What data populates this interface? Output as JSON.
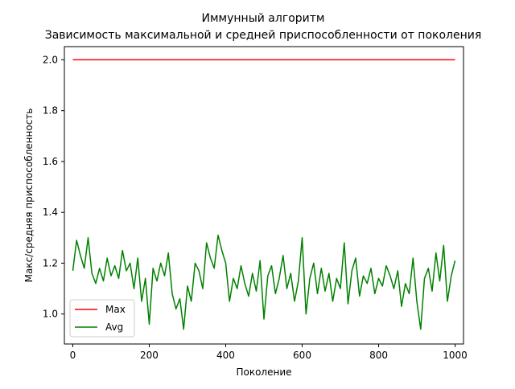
{
  "chart_data": {
    "type": "line",
    "title": "Иммунный алгоритм",
    "subtitle": "Зависимость максимальной и средней приспособленности от поколения",
    "xlabel": "Поколение",
    "ylabel": "Макс/средняя приспособленность",
    "xlim": [
      -22,
      1022
    ],
    "ylim": [
      0.882,
      2.052
    ],
    "xticks": [
      0,
      200,
      400,
      600,
      800,
      1000
    ],
    "yticks": [
      1.0,
      1.2,
      1.4,
      1.6,
      1.8,
      2.0
    ],
    "xtick_labels": [
      "0",
      "200",
      "400",
      "600",
      "800",
      "1000"
    ],
    "ytick_labels": [
      "1.0",
      "1.2",
      "1.4",
      "1.6",
      "1.8",
      "2.0"
    ],
    "grid": false,
    "legend_position": "lower-left",
    "series": [
      {
        "name": "Max",
        "color": "#ff0000",
        "x": [
          0,
          1000
        ],
        "y": [
          2.0,
          2.0
        ]
      },
      {
        "name": "Avg",
        "color": "#008000",
        "x": [
          0,
          10,
          20,
          30,
          40,
          50,
          60,
          70,
          80,
          90,
          100,
          110,
          120,
          130,
          140,
          150,
          160,
          170,
          180,
          190,
          200,
          210,
          220,
          230,
          240,
          250,
          260,
          270,
          280,
          290,
          300,
          310,
          320,
          330,
          340,
          350,
          360,
          370,
          380,
          390,
          400,
          410,
          420,
          430,
          440,
          450,
          460,
          470,
          480,
          490,
          500,
          510,
          520,
          530,
          540,
          550,
          560,
          570,
          580,
          590,
          600,
          610,
          620,
          630,
          640,
          650,
          660,
          670,
          680,
          690,
          700,
          710,
          720,
          730,
          740,
          750,
          760,
          770,
          780,
          790,
          800,
          810,
          820,
          830,
          840,
          850,
          860,
          870,
          880,
          890,
          900,
          910,
          920,
          930,
          940,
          950,
          960,
          970,
          980,
          990,
          1000
        ],
        "y": [
          1.17,
          1.29,
          1.23,
          1.18,
          1.3,
          1.16,
          1.12,
          1.18,
          1.13,
          1.22,
          1.15,
          1.19,
          1.14,
          1.25,
          1.17,
          1.2,
          1.1,
          1.22,
          1.05,
          1.14,
          0.96,
          1.18,
          1.13,
          1.2,
          1.15,
          1.24,
          1.08,
          1.02,
          1.06,
          0.94,
          1.11,
          1.05,
          1.2,
          1.17,
          1.1,
          1.28,
          1.22,
          1.18,
          1.31,
          1.25,
          1.2,
          1.05,
          1.14,
          1.1,
          1.19,
          1.12,
          1.07,
          1.16,
          1.09,
          1.21,
          0.98,
          1.15,
          1.19,
          1.08,
          1.14,
          1.23,
          1.1,
          1.16,
          1.05,
          1.13,
          1.3,
          1.0,
          1.14,
          1.2,
          1.08,
          1.18,
          1.09,
          1.16,
          1.05,
          1.14,
          1.1,
          1.28,
          1.04,
          1.17,
          1.22,
          1.07,
          1.15,
          1.12,
          1.18,
          1.08,
          1.14,
          1.11,
          1.19,
          1.15,
          1.1,
          1.17,
          1.03,
          1.12,
          1.08,
          1.22,
          1.05,
          0.94,
          1.14,
          1.18,
          1.09,
          1.24,
          1.13,
          1.27,
          1.05,
          1.15,
          1.21
        ]
      }
    ]
  }
}
